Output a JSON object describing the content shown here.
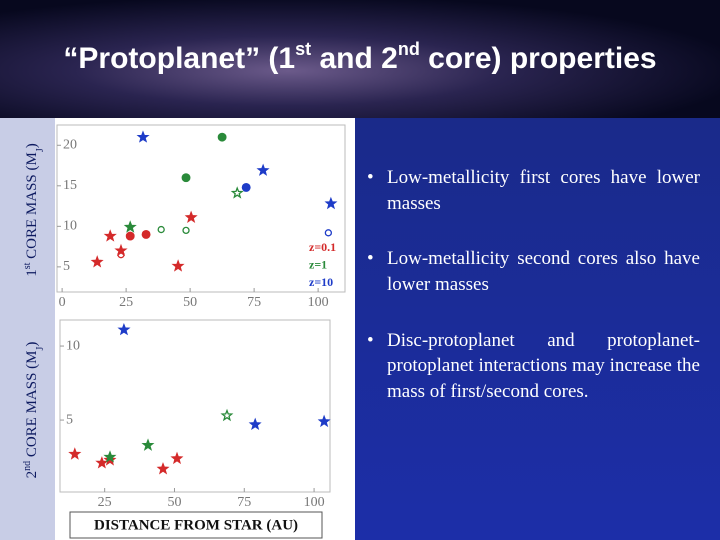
{
  "slide": {
    "title": [
      "“Protoplanet” (1",
      "st",
      " and 2",
      "nd",
      " core) properties"
    ],
    "bullets": [
      "Low-metallicity first cores have lower masses",
      "Low-metallicity second cores also have lower masses",
      "Disc-protoplanet and protoplanet-protoplanet interactions may increase the mass of first/second cores."
    ]
  },
  "chart_data": [
    {
      "type": "scatter",
      "ylabel": [
        "1",
        "st",
        " CORE MASS (M",
        "J",
        ")"
      ],
      "xlim": [
        -2,
        110.5
      ],
      "ylim": [
        1.9,
        22.5
      ],
      "xticks": [
        0,
        25,
        50,
        75,
        100
      ],
      "yticks": [
        5,
        10,
        15,
        20
      ],
      "legend": "right",
      "series": [
        {
          "name": "z=0.1",
          "color": "#d42a2a",
          "x": [
            50.4,
            32.8,
            26.6,
            18.8,
            23,
            23,
            13.7,
            45.3
          ],
          "values": [
            11.1,
            9.0,
            8.8,
            8.8,
            7.0,
            6.5,
            5.6,
            5.1
          ],
          "markers": [
            "star",
            "circle",
            "circle",
            "star",
            "star",
            "open-circle",
            "star",
            "star"
          ]
        },
        {
          "name": "z=1",
          "color": "#2a8a3a",
          "x": [
            62.5,
            48.4,
            68.4,
            26.6,
            38.7,
            48.4
          ],
          "values": [
            21,
            16.0,
            14.1,
            9.9,
            9.6,
            9.5
          ],
          "markers": [
            "circle",
            "circle",
            "open-star",
            "star",
            "open-circle",
            "open-circle"
          ]
        },
        {
          "name": "z=10",
          "color": "#1e3cc8",
          "x": [
            31.6,
            78.5,
            71.9,
            105,
            104
          ],
          "values": [
            21,
            16.9,
            14.8,
            12.8,
            9.2
          ],
          "markers": [
            "star",
            "star",
            "circle",
            "star",
            "open-circle"
          ]
        }
      ]
    },
    {
      "type": "scatter",
      "ylabel": [
        "2",
        "nd",
        " CORE MASS (M",
        "J",
        ")"
      ],
      "xlabel": "DISTANCE FROM STAR (AU)",
      "xlim": [
        9,
        105.7
      ],
      "ylim": [
        0.14,
        11.76
      ],
      "xticks": [
        25,
        50,
        75,
        100
      ],
      "yticks": [
        5,
        10
      ],
      "series": [
        {
          "color": "#d42a2a",
          "x": [
            14.3,
            26.9,
            24,
            50.9,
            45.9
          ],
          "values": [
            2.7,
            2.3,
            2.1,
            2.4,
            1.7
          ],
          "markers": [
            "star",
            "star",
            "star",
            "star",
            "star"
          ]
        },
        {
          "color": "#2a8a3a",
          "x": [
            68.8,
            40.5,
            26.9
          ],
          "values": [
            5.3,
            3.3,
            2.5
          ],
          "markers": [
            "open-star",
            "star",
            "star"
          ]
        },
        {
          "color": "#1e3cc8",
          "x": [
            31.9,
            78.9,
            103.6
          ],
          "values": [
            11.1,
            4.7,
            4.9
          ],
          "markers": [
            "star",
            "star",
            "star"
          ]
        }
      ]
    }
  ]
}
